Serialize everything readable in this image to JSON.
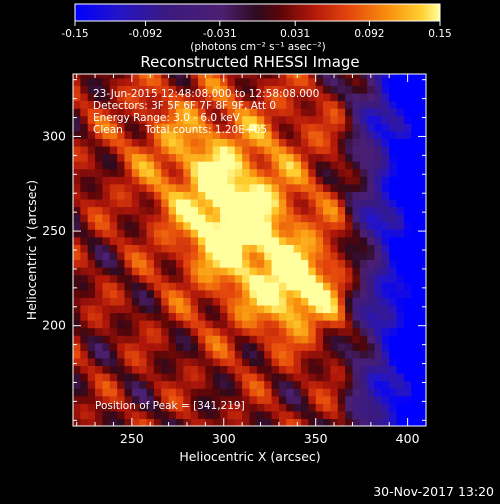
{
  "colors": {
    "background": "#000000",
    "foreground": "#ffffff",
    "colormap": [
      "#0000ff",
      "#1a0fb8",
      "#3a1577",
      "#4a1e6e",
      "#2a0f3a",
      "#3a0712",
      "#7a0a08",
      "#b81a0a",
      "#e3470c",
      "#f8880c",
      "#ffc424",
      "#ffff99"
    ]
  },
  "chart_data": {
    "type": "heatmap",
    "title": "Reconstructed RHESSI Image",
    "xlabel": "Heliocentric X (arcsec)",
    "ylabel": "Heliocentric Y (arcsec)",
    "xlim": [
      218,
      410
    ],
    "ylim": [
      147,
      333
    ],
    "xticks": [
      250,
      300,
      350,
      400
    ],
    "yticks": [
      200,
      250,
      300
    ],
    "colorbar": {
      "range": [
        -0.15,
        0.15
      ],
      "tick_labels": [
        "-0.15",
        "-0.092",
        "-0.031",
        "0.031",
        "0.092",
        "0.15"
      ],
      "unit_label": "(photons cm⁻² s⁻¹ asec⁻²)"
    },
    "annotations": {
      "time_range": "23-Jun-2015 12:48:08.000 to 12:58:08.000",
      "detectors": "Detectors: 3F 5F 6F 7F 8F 9F, Att 0",
      "energy": "Energy Range: 3.0 - 6.0 keV",
      "clean": "Clean",
      "total_counts": "Total counts: 1.20E+05",
      "peak": "Position of Peak = [341,219]"
    },
    "peaks": [
      {
        "x": 341,
        "y": 219,
        "value": 0.15
      },
      {
        "x": 305,
        "y": 255,
        "value": 0.14
      }
    ]
  },
  "footer": {
    "date": "30-Nov-2017 13:20"
  }
}
